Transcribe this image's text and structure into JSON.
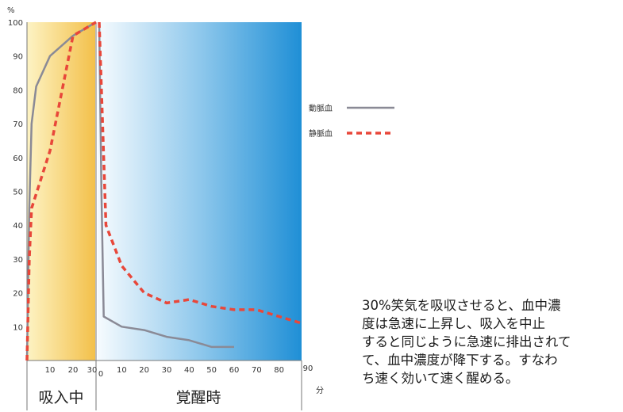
{
  "chart_data": {
    "type": "line",
    "y_unit": "%",
    "x_unit": "分",
    "ylim": [
      0,
      100
    ],
    "yticks": [
      "10",
      "20",
      "30",
      "40",
      "50",
      "60",
      "70",
      "80",
      "90",
      "100"
    ],
    "phases": [
      {
        "label": "吸入中",
        "xlim": [
          0,
          30
        ],
        "xticks": [
          "10",
          "20",
          "30"
        ]
      },
      {
        "label": "覚醒時",
        "xlim": [
          0,
          90
        ],
        "xticks": [
          "0",
          "10",
          "20",
          "30",
          "40",
          "50",
          "60",
          "70",
          "80",
          "90"
        ]
      }
    ],
    "series": [
      {
        "name": "動脈血",
        "color": "#8a8a96",
        "style": "solid",
        "inhalation": [
          [
            0,
            0
          ],
          [
            1,
            45
          ],
          [
            2,
            70
          ],
          [
            4,
            81
          ],
          [
            10,
            90
          ],
          [
            20,
            96
          ],
          [
            30,
            100
          ]
        ],
        "awakening": [
          [
            0,
            100
          ],
          [
            1,
            50
          ],
          [
            2,
            13
          ],
          [
            10,
            10
          ],
          [
            20,
            9
          ],
          [
            30,
            7
          ],
          [
            40,
            6
          ],
          [
            50,
            4
          ],
          [
            60,
            4
          ]
        ]
      },
      {
        "name": "静脈血",
        "color": "#e8473a",
        "style": "dashed",
        "inhalation": [
          [
            0,
            0
          ],
          [
            1,
            30
          ],
          [
            2,
            45
          ],
          [
            10,
            62
          ],
          [
            20,
            96
          ],
          [
            30,
            100
          ]
        ],
        "awakening": [
          [
            0,
            100
          ],
          [
            3,
            40
          ],
          [
            10,
            28
          ],
          [
            20,
            20
          ],
          [
            30,
            17
          ],
          [
            40,
            18
          ],
          [
            50,
            16
          ],
          [
            60,
            15
          ],
          [
            70,
            15
          ],
          [
            80,
            13
          ],
          [
            90,
            11
          ]
        ]
      }
    ]
  },
  "caption": [
    "30%笑気を吸収させると、血中濃",
    "度は急速に上昇し、吸入を中止",
    "すると同じように急速に排出されて",
    "て、血中濃度が降下する。すなわ",
    "ち速く効いて速く醒める。"
  ]
}
